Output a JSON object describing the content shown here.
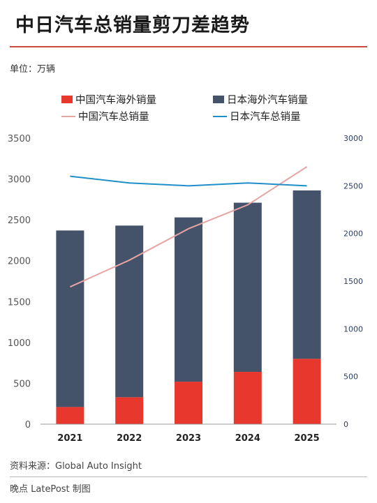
{
  "header": {
    "title": "中日汽车总销量剪刀差趋势",
    "unit": "单位：万辆"
  },
  "footer": {
    "source": "资料来源：Global Auto Insight",
    "credit": "晚点 LatePost 制图"
  },
  "colors": {
    "china_overseas": "#e8382d",
    "japan_overseas": "#44536a",
    "china_total": "#e8a3a3",
    "japan_total": "#1f8fc9",
    "accent_rule": "#c94a3c"
  },
  "chart_data": {
    "type": "bar",
    "categories": [
      "2021",
      "2022",
      "2023",
      "2024",
      "2025"
    ],
    "left_axis": {
      "ylim": [
        0,
        3500
      ],
      "ticks": [
        "0",
        "500",
        "1000",
        "1500",
        "2000",
        "2500",
        "3000",
        "3500"
      ]
    },
    "right_axis": {
      "ylim": [
        0,
        3000
      ],
      "ticks": [
        "0",
        "500",
        "1000",
        "1500",
        "2000",
        "2500",
        "3000"
      ]
    },
    "stacked": true,
    "series": [
      {
        "name": "中国汽车海外销量",
        "kind": "bar",
        "axis": "left",
        "values": [
          210,
          330,
          520,
          640,
          800
        ]
      },
      {
        "name": "日本海外汽车销量",
        "kind": "bar",
        "axis": "left",
        "values": [
          2160,
          2100,
          2010,
          2070,
          2060
        ]
      },
      {
        "name": "中国汽车总销量",
        "kind": "line",
        "axis": "right",
        "values": [
          1440,
          1720,
          2050,
          2300,
          2700
        ]
      },
      {
        "name": "日本汽车总销量",
        "kind": "line",
        "axis": "right",
        "values": [
          2600,
          2530,
          2500,
          2530,
          2500
        ]
      }
    ],
    "grid": false,
    "legend_position": "top"
  }
}
